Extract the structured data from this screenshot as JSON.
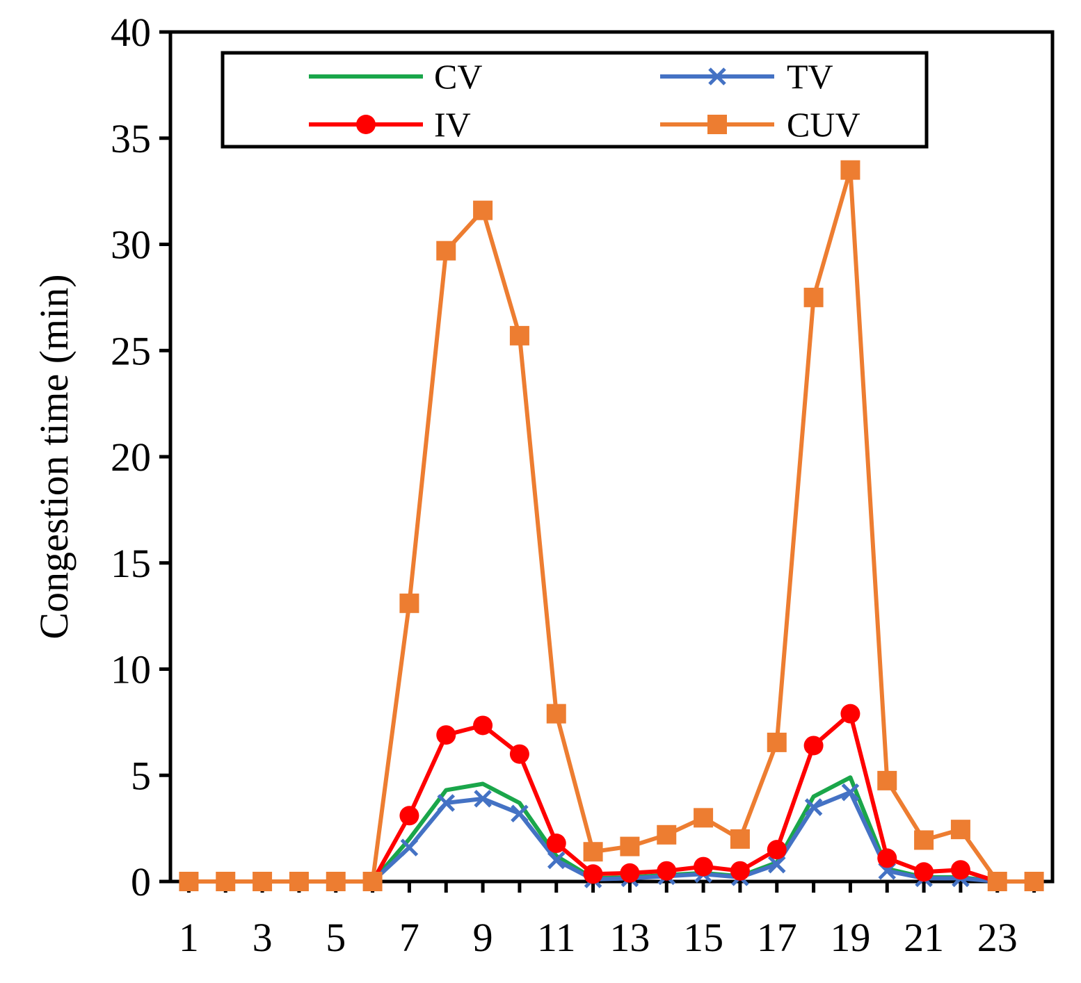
{
  "chart_data": {
    "type": "line",
    "title": "",
    "xlabel": "",
    "ylabel": "Congestion time (min)",
    "ylim": [
      0,
      40
    ],
    "yticks": [
      0,
      5,
      10,
      15,
      20,
      25,
      30,
      35,
      40
    ],
    "y_tick_labels": [
      "0",
      "5",
      "10",
      "15",
      "20",
      "25",
      "30",
      "35",
      "40"
    ],
    "x": [
      1,
      2,
      3,
      4,
      5,
      6,
      7,
      8,
      9,
      10,
      11,
      12,
      13,
      14,
      15,
      16,
      17,
      18,
      19,
      20,
      21,
      22,
      23,
      24
    ],
    "x_tick_labels": [
      "1",
      "3",
      "5",
      "7",
      "9",
      "11",
      "13",
      "15",
      "17",
      "19",
      "21",
      "23"
    ],
    "xlim": [
      0.5,
      24.5
    ],
    "grid": false,
    "legend_position": "top",
    "series": [
      {
        "name": "CV",
        "color": "#1aa64a",
        "marker": "none",
        "values": [
          0,
          0,
          0,
          0,
          0,
          0,
          2.0,
          4.3,
          4.6,
          3.7,
          1.2,
          0.15,
          0.2,
          0.3,
          0.4,
          0.25,
          0.9,
          4.0,
          4.9,
          0.6,
          0.2,
          0.2,
          0,
          0
        ]
      },
      {
        "name": "TV",
        "color": "#4472c4",
        "marker": "x",
        "values": [
          0,
          0,
          0,
          0,
          0,
          0,
          1.6,
          3.7,
          3.9,
          3.2,
          1.0,
          0.1,
          0.15,
          0.25,
          0.35,
          0.2,
          0.8,
          3.5,
          4.2,
          0.5,
          0.15,
          0.15,
          0,
          0
        ]
      },
      {
        "name": "IV",
        "color": "#ff0000",
        "marker": "circle",
        "values": [
          0,
          0,
          0,
          0,
          0,
          0,
          3.1,
          6.9,
          7.35,
          6.0,
          1.8,
          0.35,
          0.4,
          0.5,
          0.7,
          0.5,
          1.5,
          6.4,
          7.9,
          1.1,
          0.45,
          0.55,
          0,
          0
        ]
      },
      {
        "name": "CUV",
        "color": "#ed7d31",
        "marker": "square",
        "values": [
          0,
          0,
          0,
          0,
          0,
          0,
          13.1,
          29.7,
          31.6,
          25.7,
          7.9,
          1.4,
          1.65,
          2.2,
          3.0,
          2.0,
          6.55,
          27.5,
          33.5,
          4.75,
          1.95,
          2.45,
          0,
          0
        ]
      }
    ]
  }
}
